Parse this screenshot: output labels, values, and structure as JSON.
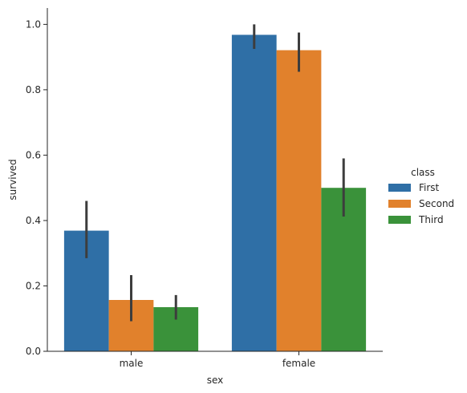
{
  "chart_data": {
    "type": "bar",
    "xlabel": "sex",
    "ylabel": "survived",
    "categories": [
      "male",
      "female"
    ],
    "ylim": [
      0,
      1.05
    ],
    "yticks": [
      0.0,
      0.2,
      0.4,
      0.6,
      0.8,
      1.0
    ],
    "ytick_labels": [
      "0.0",
      "0.2",
      "0.4",
      "0.6",
      "0.8",
      "1.0"
    ],
    "legend": {
      "title": "class",
      "placement": "right"
    },
    "series": [
      {
        "name": "First",
        "color": "#2f6fa6",
        "values": [
          0.369,
          0.968
        ],
        "err_low": [
          0.285,
          0.925
        ],
        "err_high": [
          0.46,
          1.0
        ]
      },
      {
        "name": "Second",
        "color": "#e1812c",
        "values": [
          0.157,
          0.921
        ],
        "err_low": [
          0.092,
          0.855
        ],
        "err_high": [
          0.233,
          0.975
        ]
      },
      {
        "name": "Third",
        "color": "#3a923a",
        "values": [
          0.135,
          0.5
        ],
        "err_low": [
          0.097,
          0.412
        ],
        "err_high": [
          0.172,
          0.59
        ]
      }
    ],
    "grid": false
  }
}
